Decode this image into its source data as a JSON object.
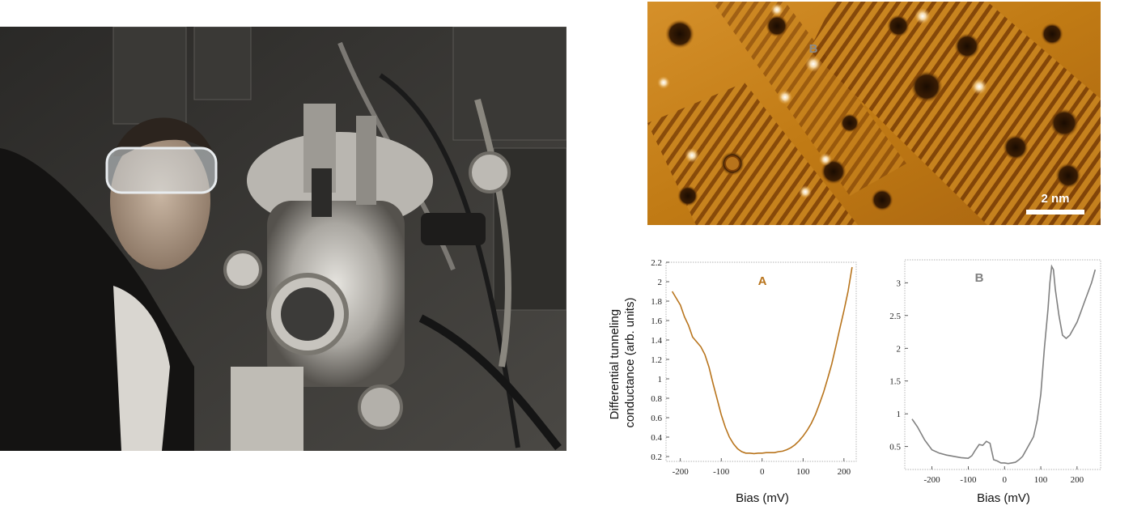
{
  "colors": {
    "series_a": "#b8741c",
    "series_b": "#808080",
    "stm_base": "#c07a14",
    "photo_dark": "#1c1b1a"
  },
  "stm_image": {
    "scale_bar_label": "2 nm",
    "marker_label": "B"
  },
  "chart_data": [
    {
      "type": "line",
      "title": "A",
      "xlabel": "Bias (mV)",
      "ylabel": "Differential tunneling conductance (arb. units)",
      "ylabel_lines": [
        "Differential tunneling",
        "conductance (arb. units)"
      ],
      "xlim": [
        -235,
        230
      ],
      "ylim": [
        0.15,
        2.2
      ],
      "xticks": [
        -200,
        -100,
        0,
        100,
        200
      ],
      "yticks": [
        0.2,
        0.4,
        0.6,
        0.8,
        1,
        1.2,
        1.4,
        1.6,
        1.8,
        2,
        2.2
      ],
      "grid": false,
      "series": [
        {
          "x": [
            -220,
            -210,
            -200,
            -190,
            -180,
            -170,
            -160,
            -150,
            -140,
            -130,
            -120,
            -110,
            -100,
            -90,
            -80,
            -70,
            -60,
            -50,
            -40,
            -30,
            -20,
            -10,
            0,
            10,
            20,
            30,
            40,
            50,
            60,
            70,
            80,
            90,
            100,
            110,
            120,
            130,
            140,
            150,
            160,
            170,
            180,
            190,
            200,
            210,
            220
          ],
          "y": [
            1.9,
            1.83,
            1.76,
            1.64,
            1.55,
            1.43,
            1.38,
            1.33,
            1.25,
            1.12,
            0.95,
            0.79,
            0.63,
            0.5,
            0.4,
            0.33,
            0.28,
            0.25,
            0.235,
            0.235,
            0.23,
            0.235,
            0.235,
            0.24,
            0.24,
            0.24,
            0.25,
            0.255,
            0.27,
            0.29,
            0.32,
            0.36,
            0.41,
            0.47,
            0.54,
            0.63,
            0.74,
            0.86,
            1.0,
            1.15,
            1.33,
            1.52,
            1.7,
            1.9,
            2.15
          ]
        }
      ]
    },
    {
      "type": "line",
      "title": "B",
      "xlabel": "Bias (mV)",
      "xlim": [
        -275,
        265
      ],
      "ylim": [
        0.15,
        3.35
      ],
      "xticks": [
        -200,
        -100,
        0,
        100,
        200
      ],
      "yticks": [
        0.5,
        1,
        1.5,
        2,
        2.5,
        3
      ],
      "grid": false,
      "series": [
        {
          "x": [
            -255,
            -240,
            -220,
            -200,
            -180,
            -160,
            -140,
            -120,
            -100,
            -90,
            -80,
            -70,
            -60,
            -50,
            -40,
            -30,
            -20,
            -10,
            0,
            10,
            20,
            30,
            40,
            50,
            60,
            70,
            80,
            90,
            100,
            110,
            120,
            125,
            130,
            135,
            140,
            150,
            160,
            170,
            180,
            190,
            200,
            210,
            220,
            230,
            240,
            250
          ],
          "y": [
            0.92,
            0.8,
            0.6,
            0.45,
            0.4,
            0.37,
            0.35,
            0.33,
            0.32,
            0.36,
            0.45,
            0.53,
            0.52,
            0.58,
            0.55,
            0.3,
            0.28,
            0.25,
            0.25,
            0.24,
            0.25,
            0.26,
            0.3,
            0.35,
            0.45,
            0.55,
            0.65,
            0.9,
            1.3,
            2.0,
            2.6,
            3.0,
            3.25,
            3.2,
            2.9,
            2.5,
            2.2,
            2.15,
            2.2,
            2.3,
            2.4,
            2.55,
            2.7,
            2.85,
            3.0,
            3.2
          ]
        }
      ]
    }
  ]
}
